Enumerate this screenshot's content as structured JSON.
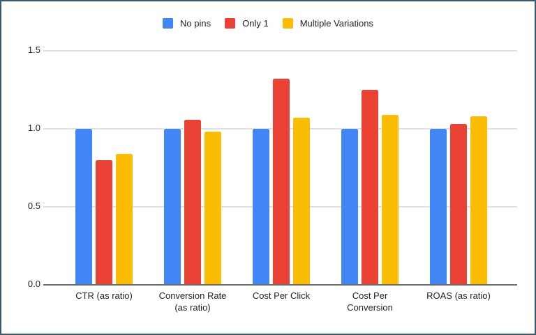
{
  "frame": {
    "border_color": "#3d5a6b",
    "background": "#ffffff"
  },
  "palette": {
    "gridline_color": "#e2e2e2",
    "axis_line_color": "#6e6e6e",
    "text_color": "#1f1f1f"
  },
  "chart_data": {
    "type": "bar",
    "title": "",
    "xlabel": "",
    "ylabel": "",
    "grid": true,
    "legend_position": "top",
    "ylim": [
      0,
      1.5
    ],
    "yticks": [
      0.0,
      0.5,
      1.0,
      1.5
    ],
    "ytick_labels": [
      "0.0",
      "0.5",
      "1.0",
      "1.5"
    ],
    "categories": [
      "CTR (as ratio)",
      "Conversion Rate (as ratio)",
      "Cost Per Click",
      "Cost Per Conversion",
      "ROAS (as ratio)"
    ],
    "category_lines": [
      [
        "CTR (as ratio)"
      ],
      [
        "Conversion Rate",
        "(as ratio)"
      ],
      [
        "Cost Per Click"
      ],
      [
        "Cost Per",
        "Conversion"
      ],
      [
        "ROAS (as ratio)"
      ]
    ],
    "series": [
      {
        "name": "No pins",
        "color": "#4285F4",
        "values": [
          1.0,
          1.0,
          1.0,
          1.0,
          1.0
        ]
      },
      {
        "name": "Only 1",
        "color": "#EA4335",
        "values": [
          0.8,
          1.06,
          1.32,
          1.25,
          1.03
        ]
      },
      {
        "name": "Multiple Variations",
        "color": "#FBBC04",
        "values": [
          0.84,
          0.98,
          1.07,
          1.09,
          1.08
        ]
      }
    ]
  }
}
